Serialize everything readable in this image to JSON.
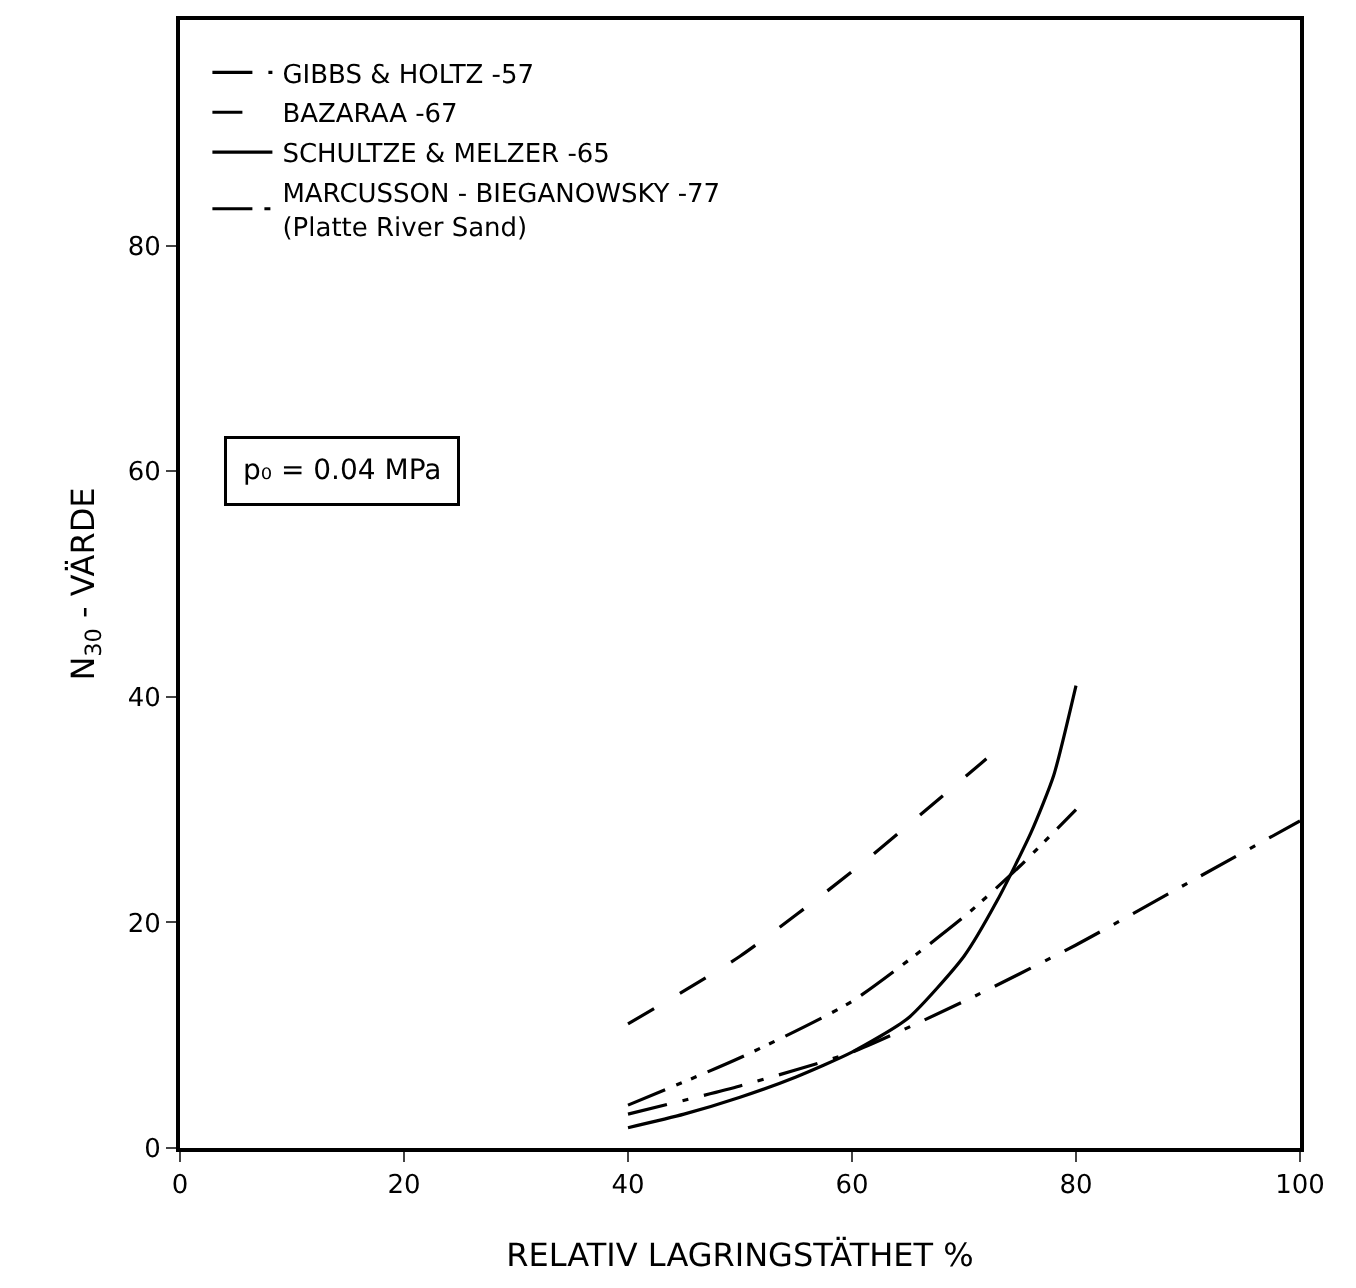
{
  "chart_data": {
    "type": "line",
    "xlabel": "RELATIV LAGRINGSTÄTHET %",
    "ylabel": "N$_{30}$ - VÄRDE",
    "xlim": [
      0,
      100
    ],
    "xticks": [
      0,
      20,
      40,
      60,
      80,
      100
    ],
    "ylim": [
      0,
      100
    ],
    "yticks": [
      0,
      20,
      40,
      60,
      80
    ],
    "grid": false,
    "legend": "top left",
    "marker": "none",
    "annotations": [
      "p₀ = 0.04 MPa"
    ],
    "series": [
      {
        "name": "GIBBS & HOLTZ -57",
        "color": "#000000",
        "line_style": "dashdot",
        "x": [
          40,
          50,
          60,
          70,
          80,
          90,
          100
        ],
        "values": [
          3,
          5.5,
          8.5,
          13,
          18,
          23.5,
          29
        ]
      },
      {
        "name": "BAZARAA -67",
        "color": "#000000",
        "line_style": "dashed",
        "x": [
          40,
          50,
          60,
          72
        ],
        "values": [
          11,
          17,
          24.5,
          34.5
        ]
      },
      {
        "name": "SCHULTZE & MELZER -65",
        "color": "#000000",
        "line_style": "solid",
        "x": [
          40,
          45,
          50,
          55,
          60,
          65,
          70,
          73,
          76,
          78,
          80
        ],
        "values": [
          1.8,
          3,
          4.5,
          6.3,
          8.5,
          11.5,
          17,
          22,
          28,
          33,
          41
        ]
      },
      {
        "name": "MARCUSSON - BIEGANOWSKY -77\n(Platte River Sand)",
        "color": "#000000",
        "line_style": "dashdotdot",
        "x": [
          40,
          50,
          60,
          70,
          75,
          80
        ],
        "values": [
          3.8,
          8,
          13,
          20.5,
          25,
          30
        ]
      }
    ]
  }
}
